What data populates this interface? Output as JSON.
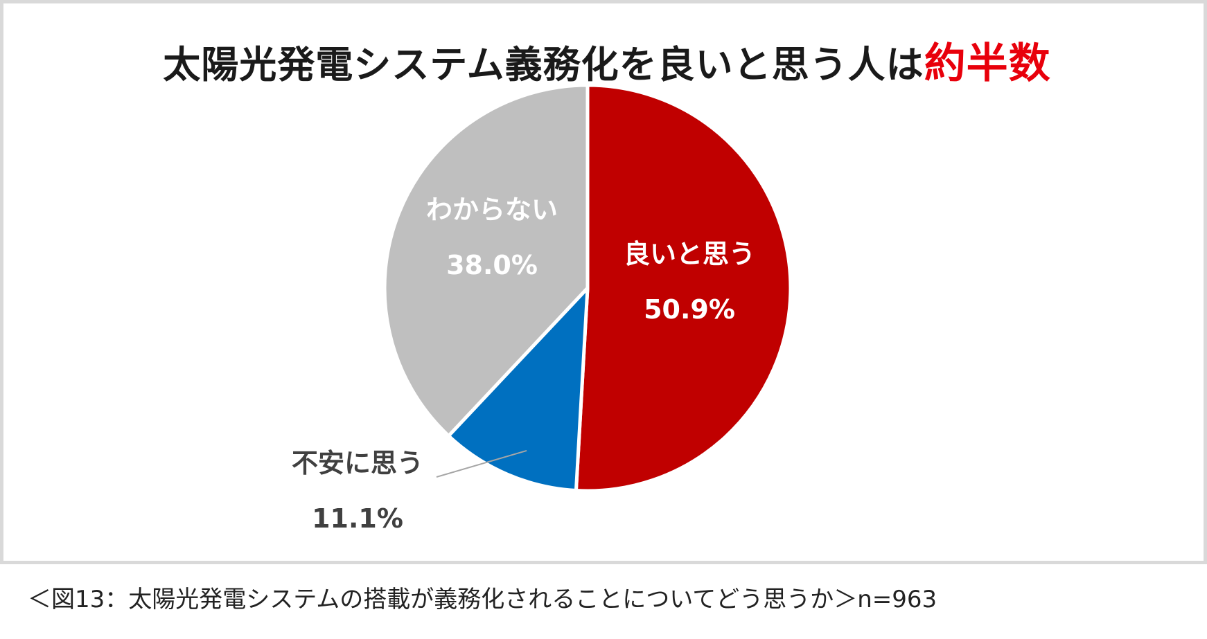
{
  "title": {
    "main": "太陽光発電システム義務化を良いと思う人は",
    "highlight": "約半数"
  },
  "caption": "＜図13：太陽光発電システムの搭載が義務化されることについてどう思うか＞n=963",
  "chart_data": {
    "type": "pie",
    "title": "太陽光発電システム義務化を良いと思う人は約半数",
    "unit": "%",
    "slices": [
      {
        "label": "良いと思う",
        "value": 50.9,
        "value_label": "50.9%",
        "color": "#c00000",
        "label_color": "#ffffff"
      },
      {
        "label": "不安に思う",
        "value": 11.1,
        "value_label": "11.1%",
        "color": "#0070c0",
        "label_color": "#404040"
      },
      {
        "label": "わからない",
        "value": 38.0,
        "value_label": "38.0%",
        "color": "#bfbfbf",
        "label_color": "#ffffff"
      }
    ],
    "start": "12 o'clock",
    "direction": "clockwise",
    "legend": "none"
  }
}
